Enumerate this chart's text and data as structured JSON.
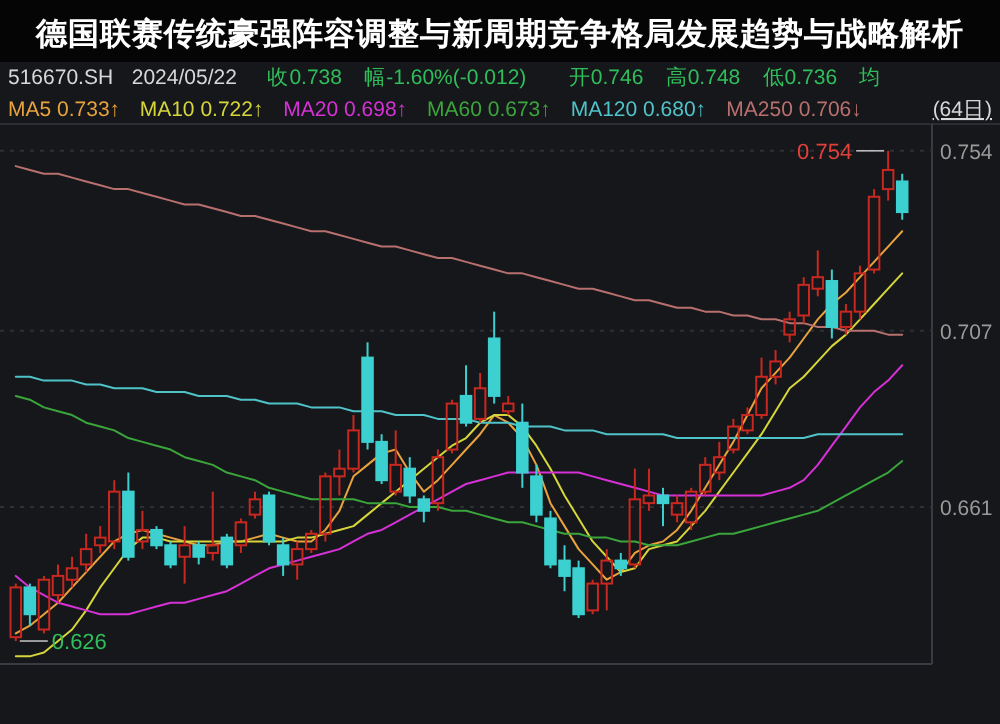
{
  "chart_data": {
    "type": "candlestick",
    "title": "德国联赛传统豪强阵容调整与新周期竞争格局发展趋势与战略解析",
    "categories": [
      null,
      null,
      null,
      null,
      null,
      null,
      null,
      null,
      null,
      null,
      null,
      null,
      null,
      null,
      null,
      null,
      null,
      null,
      null,
      null,
      null,
      null,
      null,
      null,
      null,
      null,
      null,
      null,
      null,
      null,
      null,
      null,
      null,
      null,
      null,
      null,
      null,
      null,
      null,
      null,
      null,
      null,
      null,
      null,
      null,
      null,
      null,
      null,
      null,
      null,
      null,
      null,
      null,
      null,
      null,
      null,
      null,
      null,
      null,
      null,
      null,
      null,
      null,
      null
    ],
    "ohlc": [
      [
        0.627,
        0.641,
        0.626,
        0.64
      ],
      [
        0.64,
        0.641,
        0.63,
        0.633
      ],
      [
        0.629,
        0.643,
        0.628,
        0.642
      ],
      [
        0.638,
        0.646,
        0.636,
        0.643
      ],
      [
        0.642,
        0.648,
        0.64,
        0.645
      ],
      [
        0.646,
        0.654,
        0.644,
        0.65
      ],
      [
        0.651,
        0.656,
        0.649,
        0.653
      ],
      [
        0.652,
        0.668,
        0.65,
        0.665
      ],
      [
        0.665,
        0.67,
        0.647,
        0.648
      ],
      [
        0.652,
        0.66,
        0.65,
        0.655
      ],
      [
        0.655,
        0.656,
        0.65,
        0.651
      ],
      [
        0.651,
        0.652,
        0.645,
        0.646
      ],
      [
        0.648,
        0.656,
        0.641,
        0.651
      ],
      [
        0.651,
        0.652,
        0.646,
        0.648
      ],
      [
        0.649,
        0.665,
        0.647,
        0.651
      ],
      [
        0.653,
        0.654,
        0.645,
        0.646
      ],
      [
        0.651,
        0.658,
        0.649,
        0.657
      ],
      [
        0.659,
        0.665,
        0.658,
        0.663
      ],
      [
        0.664,
        0.665,
        0.651,
        0.652
      ],
      [
        0.651,
        0.653,
        0.643,
        0.646
      ],
      [
        0.646,
        0.652,
        0.642,
        0.65
      ],
      [
        0.65,
        0.655,
        0.649,
        0.654
      ],
      [
        0.654,
        0.67,
        0.652,
        0.669
      ],
      [
        0.669,
        0.676,
        0.664,
        0.671
      ],
      [
        0.671,
        0.685,
        0.67,
        0.681
      ],
      [
        0.7,
        0.704,
        0.676,
        0.678
      ],
      [
        0.678,
        0.68,
        0.667,
        0.668
      ],
      [
        0.665,
        0.681,
        0.664,
        0.672
      ],
      [
        0.671,
        0.674,
        0.662,
        0.664
      ],
      [
        0.663,
        0.664,
        0.657,
        0.66
      ],
      [
        0.662,
        0.676,
        0.66,
        0.674
      ],
      [
        0.676,
        0.689,
        0.675,
        0.688
      ],
      [
        0.69,
        0.698,
        0.682,
        0.683
      ],
      [
        0.684,
        0.696,
        0.683,
        0.692
      ],
      [
        0.705,
        0.712,
        0.688,
        0.69
      ],
      [
        0.686,
        0.69,
        0.685,
        0.688
      ],
      [
        0.683,
        0.688,
        0.666,
        0.67
      ],
      [
        0.669,
        0.672,
        0.657,
        0.659
      ],
      [
        0.658,
        0.66,
        0.645,
        0.646
      ],
      [
        0.647,
        0.651,
        0.639,
        0.643
      ],
      [
        0.645,
        0.647,
        0.632,
        0.633
      ],
      [
        0.634,
        0.642,
        0.633,
        0.641
      ],
      [
        0.641,
        0.65,
        0.634,
        0.647
      ],
      [
        0.647,
        0.649,
        0.643,
        0.645
      ],
      [
        0.646,
        0.671,
        0.645,
        0.663
      ],
      [
        0.662,
        0.671,
        0.66,
        0.664
      ],
      [
        0.664,
        0.666,
        0.656,
        0.662
      ],
      [
        0.659,
        0.664,
        0.657,
        0.662
      ],
      [
        0.657,
        0.666,
        0.655,
        0.665
      ],
      [
        0.665,
        0.674,
        0.664,
        0.672
      ],
      [
        0.67,
        0.678,
        0.668,
        0.674
      ],
      [
        0.676,
        0.684,
        0.675,
        0.682
      ],
      [
        0.681,
        0.687,
        0.68,
        0.685
      ],
      [
        0.685,
        0.7,
        0.684,
        0.695
      ],
      [
        0.695,
        0.702,
        0.693,
        0.699
      ],
      [
        0.706,
        0.712,
        0.704,
        0.71
      ],
      [
        0.711,
        0.721,
        0.709,
        0.719
      ],
      [
        0.718,
        0.728,
        0.716,
        0.721
      ],
      [
        0.72,
        0.723,
        0.705,
        0.708
      ],
      [
        0.708,
        0.714,
        0.706,
        0.712
      ],
      [
        0.712,
        0.724,
        0.71,
        0.722
      ],
      [
        0.723,
        0.744,
        0.722,
        0.742
      ],
      [
        0.744,
        0.754,
        0.741,
        0.749
      ],
      [
        0.746,
        0.748,
        0.736,
        0.738
      ]
    ],
    "series": [
      {
        "name": "MA5 0.733↑",
        "type": "line",
        "color": "#e8a33d",
        "values": [
          0.628,
          0.63,
          0.633,
          0.636,
          0.64,
          0.644,
          0.648,
          0.652,
          0.654,
          0.655,
          0.654,
          0.653,
          0.652,
          0.651,
          0.651,
          0.652,
          0.652,
          0.653,
          0.654,
          0.653,
          0.652,
          0.652,
          0.655,
          0.66,
          0.669,
          0.672,
          0.675,
          0.676,
          0.67,
          0.665,
          0.668,
          0.672,
          0.676,
          0.68,
          0.685,
          0.683,
          0.679,
          0.672,
          0.662,
          0.656,
          0.65,
          0.646,
          0.642,
          0.644,
          0.649,
          0.651,
          0.652,
          0.655,
          0.66,
          0.666,
          0.672,
          0.678,
          0.685,
          0.692,
          0.696,
          0.7,
          0.705,
          0.71,
          0.714,
          0.717,
          0.721,
          0.725,
          0.729,
          0.733
        ]
      },
      {
        "name": "MA10 0.722↑",
        "type": "line",
        "color": "#d6d63a",
        "values": [
          0.622,
          0.622,
          0.623,
          0.626,
          0.629,
          0.634,
          0.64,
          0.645,
          0.65,
          0.653,
          0.653,
          0.652,
          0.652,
          0.652,
          0.652,
          0.652,
          0.652,
          0.652,
          0.652,
          0.652,
          0.653,
          0.653,
          0.654,
          0.655,
          0.656,
          0.659,
          0.662,
          0.665,
          0.668,
          0.671,
          0.674,
          0.677,
          0.679,
          0.683,
          0.685,
          0.685,
          0.682,
          0.677,
          0.671,
          0.664,
          0.658,
          0.652,
          0.648,
          0.644,
          0.645,
          0.65,
          0.651,
          0.652,
          0.656,
          0.66,
          0.665,
          0.67,
          0.675,
          0.68,
          0.686,
          0.692,
          0.695,
          0.699,
          0.703,
          0.706,
          0.71,
          0.714,
          0.718,
          0.722
        ]
      },
      {
        "name": "MA20 0.698↑",
        "type": "line",
        "color": "#d631d6",
        "values": [
          0.643,
          0.64,
          0.638,
          0.636,
          0.635,
          0.634,
          0.633,
          0.633,
          0.633,
          0.634,
          0.635,
          0.636,
          0.636,
          0.637,
          0.638,
          0.639,
          0.641,
          0.643,
          0.645,
          0.646,
          0.647,
          0.648,
          0.649,
          0.65,
          0.652,
          0.654,
          0.655,
          0.657,
          0.659,
          0.661,
          0.663,
          0.665,
          0.667,
          0.668,
          0.669,
          0.67,
          0.67,
          0.67,
          0.67,
          0.67,
          0.67,
          0.669,
          0.668,
          0.667,
          0.666,
          0.665,
          0.664,
          0.664,
          0.664,
          0.664,
          0.664,
          0.664,
          0.664,
          0.664,
          0.665,
          0.666,
          0.668,
          0.672,
          0.677,
          0.682,
          0.687,
          0.691,
          0.694,
          0.698
        ]
      },
      {
        "name": "MA60 0.673↑",
        "type": "line",
        "color": "#3aa53a",
        "values": [
          0.69,
          0.689,
          0.687,
          0.686,
          0.685,
          0.683,
          0.682,
          0.681,
          0.679,
          0.678,
          0.677,
          0.676,
          0.674,
          0.673,
          0.672,
          0.67,
          0.669,
          0.668,
          0.666,
          0.665,
          0.664,
          0.663,
          0.663,
          0.663,
          0.663,
          0.662,
          0.662,
          0.662,
          0.661,
          0.661,
          0.661,
          0.66,
          0.66,
          0.659,
          0.658,
          0.657,
          0.657,
          0.656,
          0.655,
          0.654,
          0.654,
          0.653,
          0.653,
          0.652,
          0.652,
          0.651,
          0.651,
          0.651,
          0.652,
          0.653,
          0.654,
          0.654,
          0.655,
          0.656,
          0.657,
          0.658,
          0.659,
          0.66,
          0.662,
          0.664,
          0.666,
          0.668,
          0.67,
          0.673
        ]
      },
      {
        "name": "MA120 0.680↑",
        "type": "line",
        "color": "#4fc3c8",
        "values": [
          0.695,
          0.695,
          0.694,
          0.694,
          0.694,
          0.693,
          0.693,
          0.692,
          0.692,
          0.692,
          0.691,
          0.691,
          0.691,
          0.69,
          0.69,
          0.69,
          0.689,
          0.689,
          0.688,
          0.688,
          0.688,
          0.687,
          0.687,
          0.687,
          0.686,
          0.686,
          0.686,
          0.685,
          0.685,
          0.685,
          0.684,
          0.684,
          0.684,
          0.683,
          0.683,
          0.683,
          0.682,
          0.682,
          0.682,
          0.681,
          0.681,
          0.681,
          0.68,
          0.68,
          0.68,
          0.68,
          0.68,
          0.679,
          0.679,
          0.679,
          0.679,
          0.679,
          0.679,
          0.679,
          0.679,
          0.679,
          0.679,
          0.68,
          0.68,
          0.68,
          0.68,
          0.68,
          0.68,
          0.68
        ]
      },
      {
        "name": "MA250 0.706↓",
        "type": "line",
        "color": "#b8706e",
        "values": [
          0.75,
          0.749,
          0.748,
          0.748,
          0.747,
          0.746,
          0.745,
          0.744,
          0.744,
          0.743,
          0.742,
          0.741,
          0.74,
          0.74,
          0.739,
          0.738,
          0.737,
          0.737,
          0.736,
          0.735,
          0.734,
          0.733,
          0.733,
          0.732,
          0.731,
          0.73,
          0.729,
          0.729,
          0.728,
          0.727,
          0.726,
          0.726,
          0.725,
          0.724,
          0.723,
          0.722,
          0.722,
          0.721,
          0.72,
          0.719,
          0.718,
          0.718,
          0.717,
          0.716,
          0.715,
          0.715,
          0.714,
          0.713,
          0.713,
          0.712,
          0.712,
          0.711,
          0.711,
          0.71,
          0.71,
          0.709,
          0.709,
          0.708,
          0.708,
          0.707,
          0.707,
          0.707,
          0.706,
          0.706
        ]
      }
    ],
    "ylim": [
      0.62,
      0.761
    ],
    "yticks": [
      0.754,
      0.707,
      0.661
    ],
    "tick_labels": "y",
    "grid": "y",
    "legend": "top",
    "annotations": [
      "516670.SH",
      "2024/05/22",
      "收0.738",
      "幅-1.60%(-0.012)",
      "开0.746",
      "高0.748",
      "低0.736",
      "均",
      "(64日)",
      "0.754",
      "0.626"
    ]
  }
}
